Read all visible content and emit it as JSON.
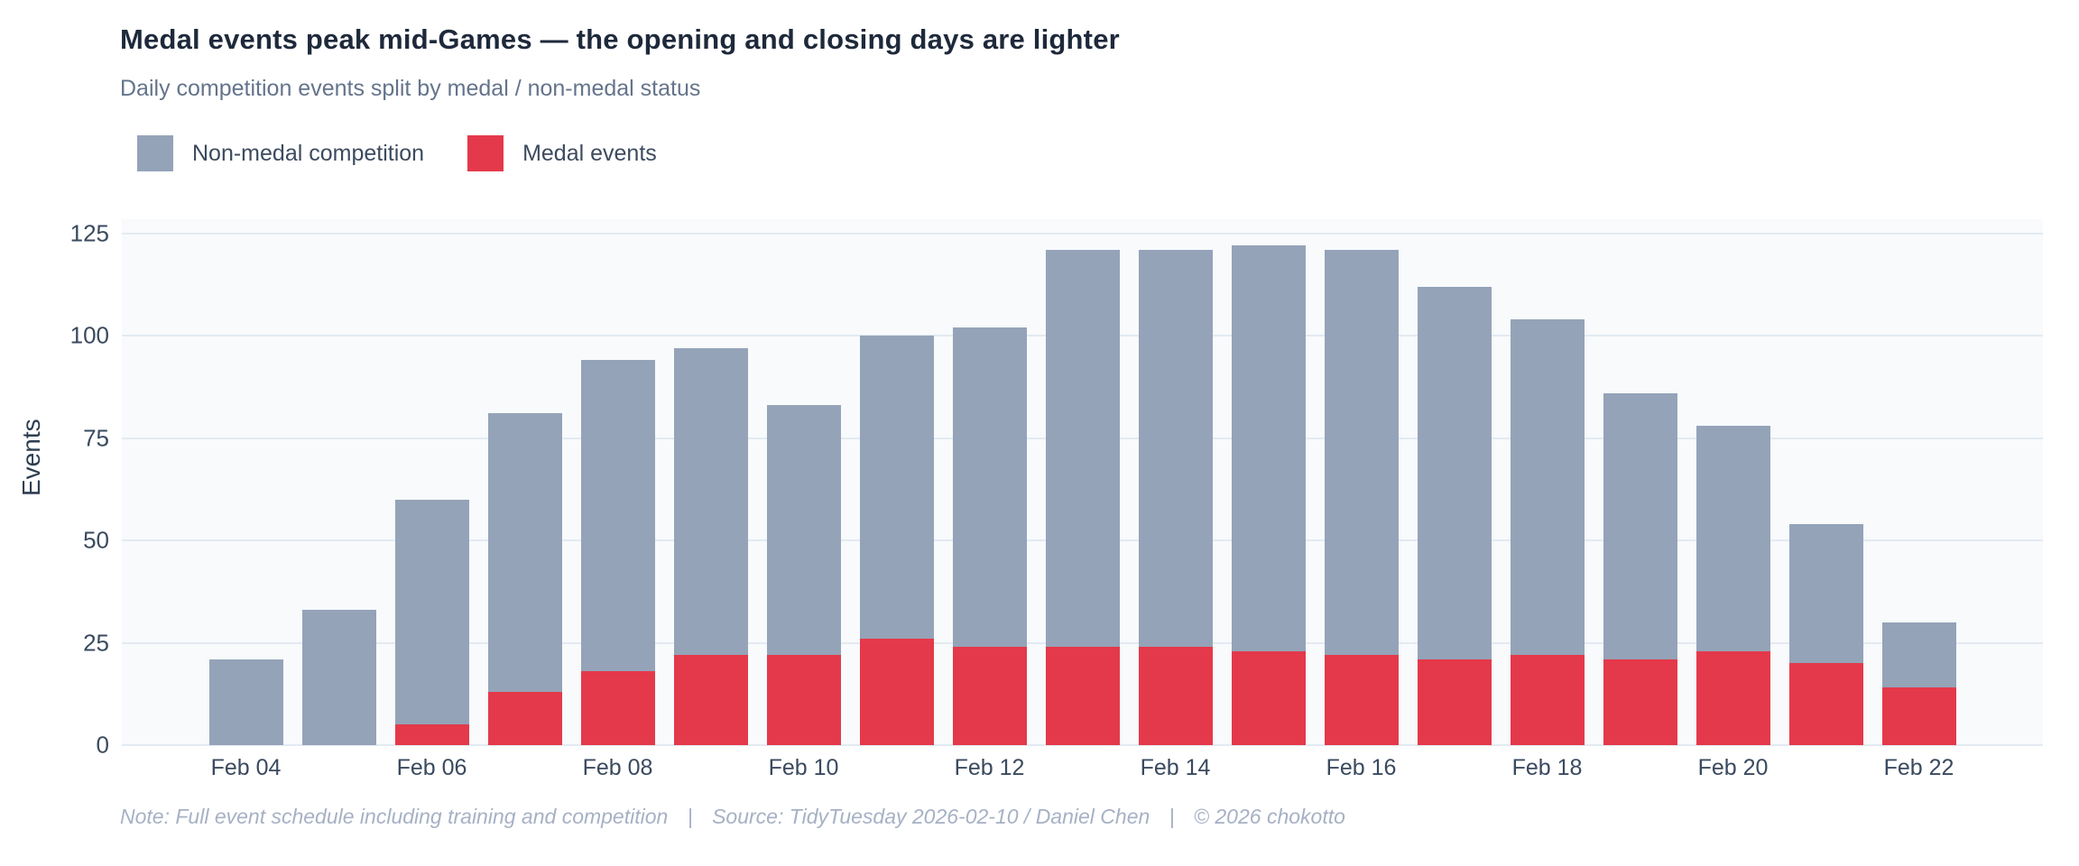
{
  "header": {
    "title": "Medal events peak mid-Games — the opening and closing days are lighter",
    "subtitle": "Daily competition events split by medal / non-medal status"
  },
  "legend": {
    "items": [
      {
        "label": "Non-medal competition",
        "color": "#94a3b8"
      },
      {
        "label": "Medal events",
        "color": "#e4394a"
      }
    ]
  },
  "chart_data": {
    "type": "bar",
    "stacked": true,
    "title": "Medal events peak mid-Games — the opening and closing days are lighter",
    "subtitle": "Daily competition events split by medal / non-medal status",
    "xlabel": "",
    "ylabel": "Events",
    "ylim": [
      0,
      125
    ],
    "yticks": [
      0,
      25,
      50,
      75,
      100,
      125
    ],
    "grid": true,
    "legend_position": "top-left",
    "categories": [
      "Feb 04",
      "Feb 05",
      "Feb 06",
      "Feb 07",
      "Feb 08",
      "Feb 09",
      "Feb 10",
      "Feb 11",
      "Feb 12",
      "Feb 13",
      "Feb 14",
      "Feb 15",
      "Feb 16",
      "Feb 17",
      "Feb 18",
      "Feb 19",
      "Feb 20",
      "Feb 21",
      "Feb 22"
    ],
    "xtick_shown": [
      "Feb 04",
      "Feb 06",
      "Feb 08",
      "Feb 10",
      "Feb 12",
      "Feb 14",
      "Feb 16",
      "Feb 18",
      "Feb 20",
      "Feb 22"
    ],
    "series": [
      {
        "name": "Medal events",
        "color": "#e4394a",
        "values": [
          0,
          0,
          5,
          13,
          18,
          22,
          22,
          26,
          24,
          24,
          24,
          23,
          22,
          21,
          22,
          21,
          23,
          20,
          14
        ]
      },
      {
        "name": "Non-medal competition",
        "color": "#94a3b8",
        "values": [
          21,
          33,
          55,
          68,
          76,
          75,
          61,
          74,
          78,
          97,
          97,
          99,
          99,
          91,
          82,
          65,
          55,
          34,
          16
        ]
      }
    ],
    "totals": [
      21,
      33,
      60,
      81,
      94,
      97,
      83,
      100,
      102,
      121,
      121,
      122,
      121,
      112,
      104,
      86,
      78,
      54,
      30
    ]
  },
  "axes": {
    "y_title": "Events"
  },
  "footer": {
    "note": "Note: Full event schedule including training and competition",
    "separator": "|",
    "source": "Source: TidyTuesday 2026-02-10 / Daniel Chen",
    "copyright": "© 2026 chokotto"
  }
}
